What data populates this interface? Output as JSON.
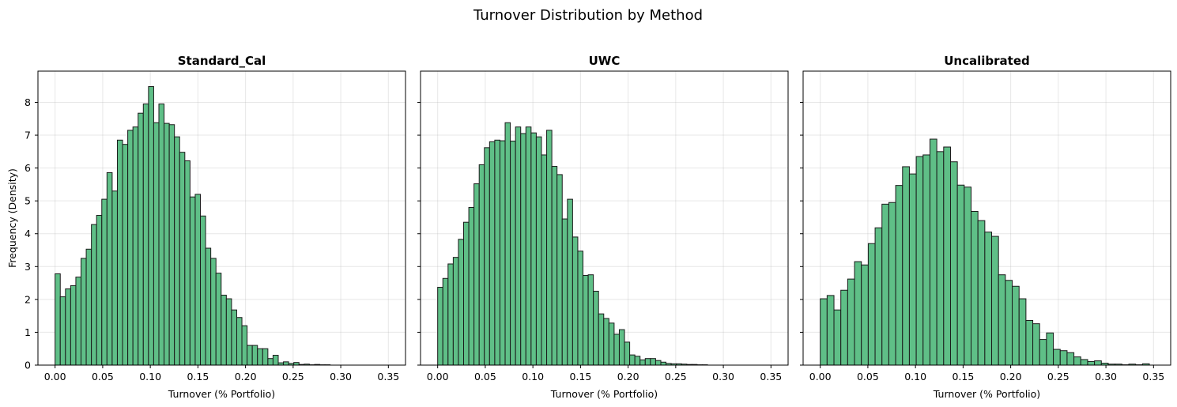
{
  "figure": {
    "title": "Turnover Distribution by Method"
  },
  "colors": {
    "bar_fill": "#5fbf87",
    "bar_edge": "#1a1a1a"
  },
  "chart_data": [
    {
      "type": "bar",
      "title": "Standard_Cal",
      "xlabel": "Turnover (% Portfolio)",
      "ylabel": "Frequency (Density)",
      "xlim": [
        -0.018,
        0.368
      ],
      "ylim": [
        0,
        8.95
      ],
      "xticks": [
        "0.00",
        "0.05",
        "0.10",
        "0.15",
        "0.20",
        "0.25",
        "0.30",
        "0.35"
      ],
      "yticks": [
        "0",
        "1",
        "2",
        "3",
        "4",
        "5",
        "6",
        "7",
        "8"
      ],
      "grid": true,
      "bin_start": 0.0,
      "bin_width": 0.00545,
      "values": [
        2.78,
        2.08,
        2.32,
        2.42,
        2.68,
        3.25,
        3.53,
        4.28,
        4.56,
        5.05,
        5.86,
        5.3,
        6.85,
        6.72,
        7.15,
        7.25,
        7.67,
        7.95,
        8.48,
        7.38,
        7.95,
        7.36,
        7.32,
        6.95,
        6.48,
        6.22,
        5.12,
        5.2,
        4.54,
        3.56,
        3.25,
        2.8,
        2.13,
        2.02,
        1.68,
        1.45,
        1.2,
        0.6,
        0.6,
        0.5,
        0.5,
        0.2,
        0.3,
        0.07,
        0.1,
        0.05,
        0.08,
        0.02,
        0.03,
        0.01,
        0.02,
        0.01,
        0.01,
        0.0,
        0.0,
        0.0,
        0.0,
        0.0,
        0.0,
        0.0,
        0.0,
        0.0,
        0.0,
        0.0,
        0.0,
        0.0
      ]
    },
    {
      "type": "bar",
      "title": "UWC",
      "xlabel": "Turnover (% Portfolio)",
      "ylabel": "",
      "xlim": [
        -0.018,
        0.368
      ],
      "ylim": [
        0,
        8.95
      ],
      "xticks": [
        "0.00",
        "0.05",
        "0.10",
        "0.15",
        "0.20",
        "0.25",
        "0.30",
        "0.35"
      ],
      "yticks": [],
      "grid": true,
      "bin_start": 0.0,
      "bin_width": 0.00545,
      "values": [
        2.37,
        2.64,
        3.08,
        3.28,
        3.83,
        4.35,
        4.8,
        5.52,
        6.1,
        6.62,
        6.8,
        6.85,
        6.83,
        7.38,
        6.82,
        7.25,
        7.05,
        7.25,
        7.07,
        6.95,
        6.4,
        7.15,
        6.05,
        5.8,
        4.45,
        5.05,
        3.9,
        3.47,
        2.73,
        2.75,
        2.25,
        1.56,
        1.42,
        1.28,
        0.94,
        1.08,
        0.7,
        0.31,
        0.27,
        0.16,
        0.2,
        0.2,
        0.14,
        0.09,
        0.05,
        0.04,
        0.04,
        0.03,
        0.02,
        0.02,
        0.01,
        0.01,
        0.0,
        0.0,
        0.0,
        0.0,
        0.0,
        0.0,
        0.0,
        0.0,
        0.0,
        0.0,
        0.0,
        0.0,
        0.0
      ]
    },
    {
      "type": "bar",
      "title": "Uncalibrated",
      "xlabel": "Turnover (% Portfolio)",
      "ylabel": "",
      "xlim": [
        -0.018,
        0.368
      ],
      "ylim": [
        0,
        8.95
      ],
      "xticks": [
        "0.00",
        "0.05",
        "0.10",
        "0.15",
        "0.20",
        "0.25",
        "0.30",
        "0.35"
      ],
      "yticks": [],
      "grid": true,
      "bin_start": 0.0,
      "bin_width": 0.0072,
      "values": [
        2.02,
        2.12,
        1.68,
        2.28,
        2.62,
        3.15,
        3.05,
        3.7,
        4.18,
        4.9,
        4.95,
        5.47,
        6.04,
        5.82,
        6.35,
        6.4,
        6.88,
        6.5,
        6.64,
        6.19,
        5.48,
        5.42,
        4.68,
        4.4,
        4.05,
        3.92,
        2.75,
        2.58,
        2.4,
        2.02,
        1.36,
        1.26,
        0.78,
        0.98,
        0.48,
        0.44,
        0.38,
        0.25,
        0.17,
        0.11,
        0.13,
        0.06,
        0.03,
        0.03,
        0.01,
        0.03,
        0.01,
        0.04,
        0.0,
        0.0
      ]
    }
  ]
}
